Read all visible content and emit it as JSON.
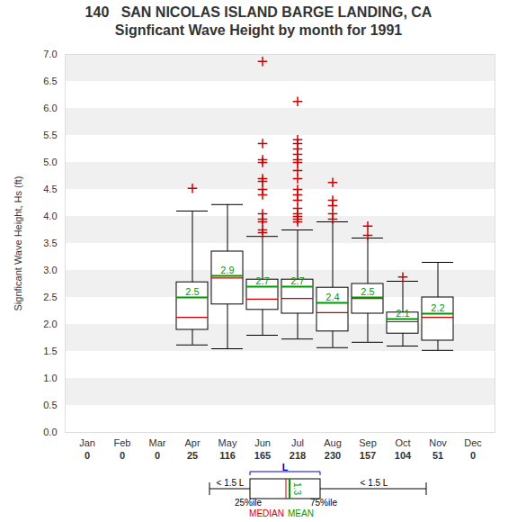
{
  "chart_data": {
    "type": "box",
    "title": "140   SAN NICOLAS ISLAND BARGE LANDING, CA",
    "subtitle": "Signficant Wave Height by month for 1991",
    "y_label": "Signficant Wave Height, Hs (ft)",
    "categories": [
      "Jan",
      "Feb",
      "Mar",
      "Apr",
      "May",
      "Jun",
      "Jul",
      "Aug",
      "Sep",
      "Oct",
      "Nov",
      "Dec"
    ],
    "counts": [
      0,
      0,
      0,
      25,
      116,
      165,
      218,
      230,
      157,
      104,
      51,
      0
    ],
    "whisker_low": [
      null,
      null,
      null,
      1.62,
      1.55,
      1.8,
      1.73,
      1.57,
      1.67,
      1.6,
      1.52,
      null
    ],
    "q1": [
      null,
      null,
      null,
      1.9,
      2.37,
      2.27,
      2.2,
      1.87,
      2.2,
      1.83,
      1.7,
      null
    ],
    "median": [
      null,
      null,
      null,
      2.13,
      2.86,
      2.47,
      2.48,
      2.22,
      2.48,
      2.05,
      2.13,
      null
    ],
    "q3": [
      null,
      null,
      null,
      2.78,
      3.35,
      2.83,
      2.83,
      2.68,
      2.75,
      2.22,
      2.5,
      null
    ],
    "whisker_high": [
      null,
      null,
      null,
      4.1,
      4.22,
      3.63,
      3.75,
      3.9,
      3.6,
      2.8,
      3.15,
      null
    ],
    "values": [
      null,
      null,
      null,
      2.5,
      2.9,
      2.7,
      2.7,
      2.4,
      2.5,
      2.1,
      2.2,
      null
    ],
    "outliers": [
      [],
      [],
      [],
      [
        4.52
      ],
      [],
      [
        3.7,
        3.75,
        3.9,
        3.95,
        4.05,
        4.4,
        4.5,
        4.65,
        4.7,
        5.0,
        5.05,
        5.35,
        6.87
      ],
      [
        3.9,
        3.95,
        4.0,
        4.05,
        4.15,
        4.3,
        4.4,
        4.5,
        4.7,
        4.85,
        5.0,
        5.05,
        5.15,
        5.25,
        5.35,
        5.42,
        6.13
      ],
      [
        3.95,
        4.05,
        4.2,
        4.3,
        4.63
      ],
      [
        3.65,
        3.82
      ],
      [
        2.88
      ],
      [],
      []
    ],
    "data_labels": true,
    "ylim": [
      0,
      7
    ],
    "yticks": [
      {
        "value": 0,
        "label": "0.0"
      },
      0.5,
      {
        "value": 1,
        "label": "1.0"
      },
      1.5,
      {
        "value": 2,
        "label": "2.0"
      },
      2.5,
      {
        "value": 3,
        "label": "3.0"
      },
      3.5,
      {
        "value": 4,
        "label": "4.0"
      },
      4.5,
      {
        "value": 5,
        "label": "5.0"
      },
      5.5,
      {
        "value": 6,
        "label": "6.0"
      },
      6.5,
      {
        "value": 7,
        "label": "7.0"
      }
    ],
    "grid": true,
    "box_key": {
      "range_label": "L",
      "whisker_label": "< 1.5 L",
      "lower_label": "25%ile",
      "upper_label": "75%ile",
      "median_label": "MEDIAN",
      "mean_label": "MEAN",
      "mean_value_label": "1.3"
    }
  }
}
